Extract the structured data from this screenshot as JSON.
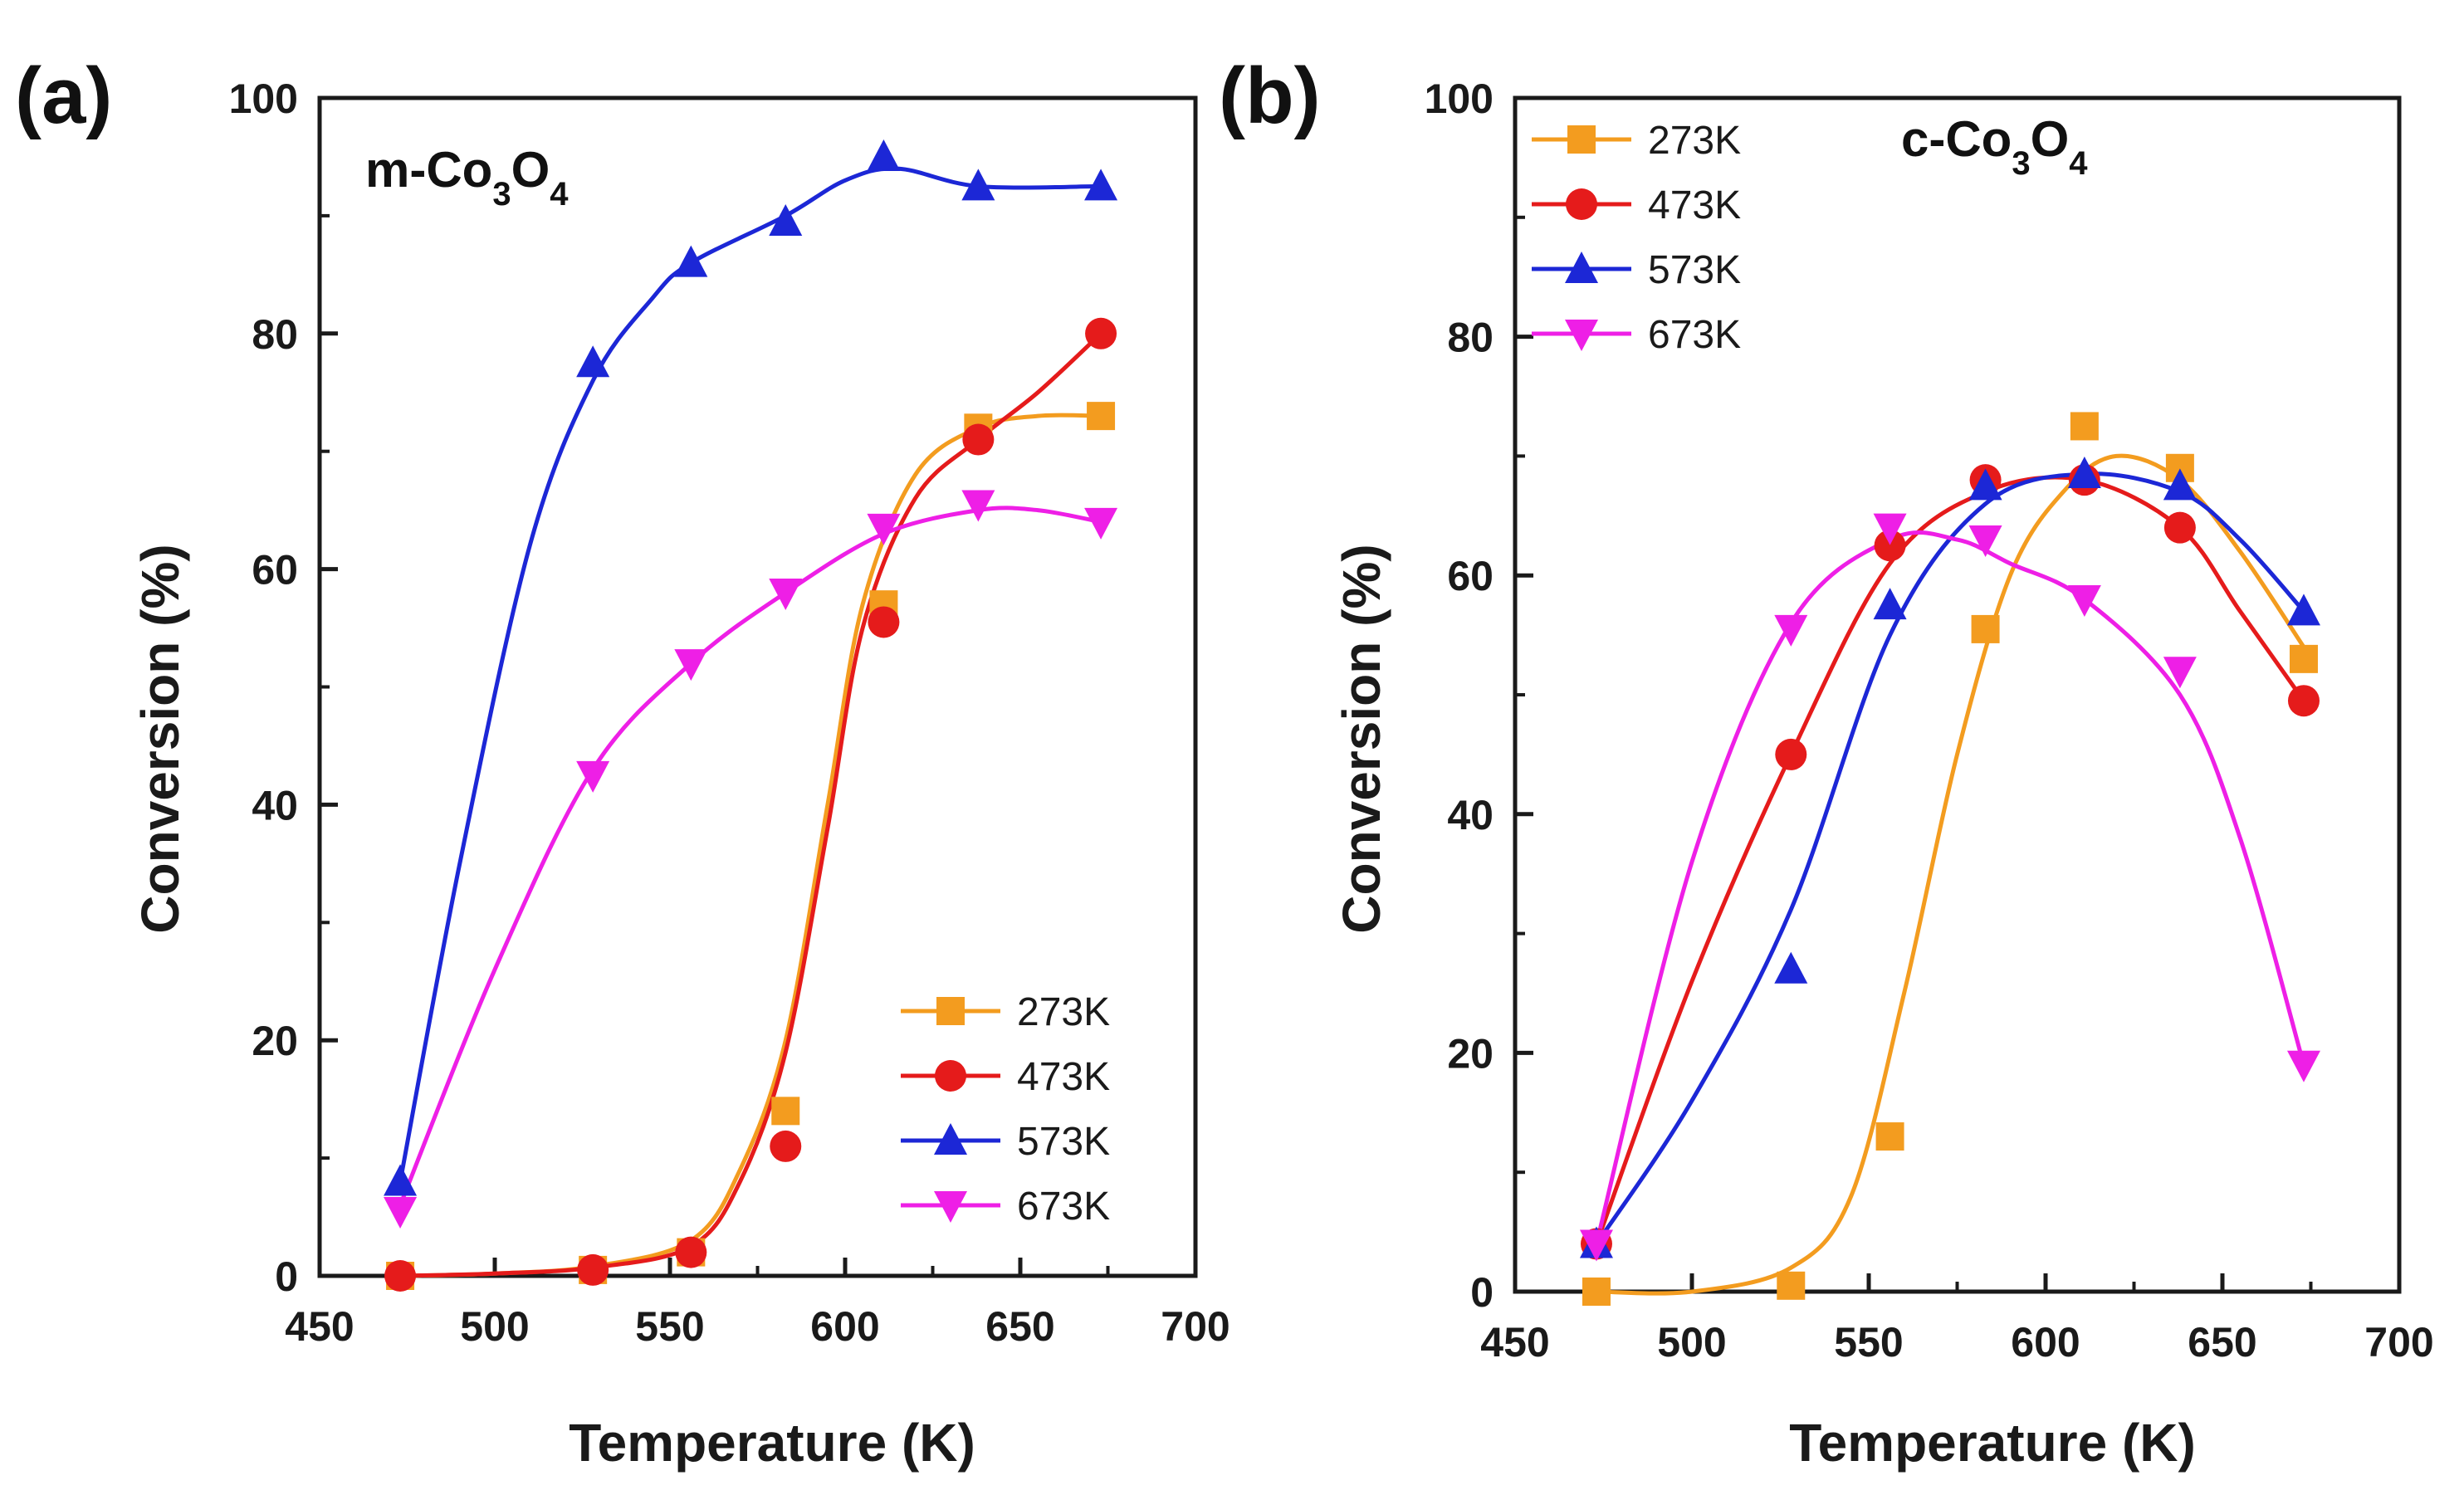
{
  "chart_data": [
    {
      "type": "line",
      "panel_label": "(a)",
      "sample_label": {
        "prefix": "m-Co",
        "sub1": "3",
        "mid": "O",
        "sub2": "4"
      },
      "xlabel": "Temperature (K)",
      "ylabel": "Conversion (%)",
      "xlim": [
        450,
        700
      ],
      "ylim": [
        0,
        100
      ],
      "xticks": [
        450,
        500,
        550,
        600,
        650,
        700
      ],
      "yticks": [
        0,
        20,
        40,
        60,
        80,
        100
      ],
      "legend_position": "bottom-right",
      "series": [
        {
          "name": "273K",
          "color": "#f39c1f",
          "marker": "square",
          "x": [
            473,
            528,
            556,
            583,
            611,
            638,
            673
          ],
          "y": [
            0,
            0.5,
            2,
            14,
            57,
            72,
            73
          ],
          "curve": [
            [
              473,
              0
            ],
            [
              500,
              0.2
            ],
            [
              528,
              0.8
            ],
            [
              556,
              3
            ],
            [
              570,
              9
            ],
            [
              583,
              20
            ],
            [
              595,
              40
            ],
            [
              605,
              57
            ],
            [
              620,
              68
            ],
            [
              638,
              72
            ],
            [
              655,
              73
            ],
            [
              673,
              73
            ]
          ]
        },
        {
          "name": "473K",
          "color": "#e51b1b",
          "marker": "circle",
          "x": [
            473,
            528,
            556,
            583,
            611,
            638,
            673
          ],
          "y": [
            0,
            0.5,
            2,
            11,
            55.5,
            71,
            80
          ],
          "curve": [
            [
              473,
              0
            ],
            [
              500,
              0.2
            ],
            [
              528,
              0.7
            ],
            [
              556,
              2.5
            ],
            [
              570,
              8
            ],
            [
              583,
              19
            ],
            [
              595,
              38
            ],
            [
              605,
              55
            ],
            [
              620,
              66
            ],
            [
              638,
              71
            ],
            [
              655,
              75
            ],
            [
              673,
              80
            ]
          ]
        },
        {
          "name": "573K",
          "color": "#1c27d6",
          "marker": "triangle-up",
          "x": [
            473,
            528,
            556,
            583,
            611,
            638,
            673
          ],
          "y": [
            8,
            77.5,
            86,
            89.5,
            95,
            92.5,
            92.5
          ],
          "curve": [
            [
              473,
              8
            ],
            [
              490,
              35
            ],
            [
              510,
              62
            ],
            [
              528,
              76
            ],
            [
              545,
              83
            ],
            [
              556,
              86
            ],
            [
              583,
              90
            ],
            [
              600,
              93
            ],
            [
              615,
              94
            ],
            [
              638,
              92.5
            ],
            [
              673,
              92.5
            ]
          ]
        },
        {
          "name": "673K",
          "color": "#ee1fe6",
          "marker": "triangle-down",
          "x": [
            473,
            528,
            556,
            583,
            611,
            638,
            673
          ],
          "y": [
            5.5,
            42.5,
            52,
            58,
            63.5,
            65.5,
            64
          ],
          "curve": [
            [
              473,
              6
            ],
            [
              500,
              26
            ],
            [
              528,
              43
            ],
            [
              556,
              52
            ],
            [
              583,
              58
            ],
            [
              611,
              63
            ],
            [
              638,
              65
            ],
            [
              655,
              65
            ],
            [
              673,
              64
            ]
          ]
        }
      ]
    },
    {
      "type": "line",
      "panel_label": "(b)",
      "sample_label": {
        "prefix": "c-Co",
        "sub1": "3",
        "mid": "O",
        "sub2": "4"
      },
      "xlabel": "Temperature (K)",
      "ylabel": "Conversion (%)",
      "xlim": [
        450,
        700
      ],
      "ylim": [
        0,
        100
      ],
      "xticks": [
        450,
        500,
        550,
        600,
        650,
        700
      ],
      "yticks": [
        0,
        20,
        40,
        60,
        80,
        100
      ],
      "legend_position": "top-left",
      "series": [
        {
          "name": "273K",
          "color": "#f39c1f",
          "marker": "square",
          "x": [
            473,
            528,
            556,
            583,
            611,
            638,
            673
          ],
          "y": [
            0,
            0.5,
            13,
            55.5,
            72.5,
            69,
            53
          ],
          "curve": [
            [
              473,
              0
            ],
            [
              500,
              0
            ],
            [
              528,
              2
            ],
            [
              545,
              8
            ],
            [
              560,
              25
            ],
            [
              575,
              45
            ],
            [
              590,
              60
            ],
            [
              605,
              67
            ],
            [
              620,
              70
            ],
            [
              638,
              68
            ],
            [
              655,
              62
            ],
            [
              673,
              54
            ]
          ]
        },
        {
          "name": "473K",
          "color": "#e51b1b",
          "marker": "circle",
          "x": [
            473,
            528,
            556,
            583,
            611,
            638,
            673
          ],
          "y": [
            4,
            45,
            62.5,
            68,
            68,
            64,
            49.5
          ],
          "curve": [
            [
              473,
              4
            ],
            [
              500,
              26
            ],
            [
              528,
              45
            ],
            [
              556,
              61
            ],
            [
              583,
              67
            ],
            [
              611,
              68
            ],
            [
              638,
              64
            ],
            [
              655,
              57
            ],
            [
              673,
              49.5
            ]
          ]
        },
        {
          "name": "573K",
          "color": "#1c27d6",
          "marker": "triangle-up",
          "x": [
            473,
            528,
            556,
            583,
            611,
            638,
            673
          ],
          "y": [
            4,
            27,
            57.5,
            67.5,
            68.5,
            67.5,
            57
          ],
          "curve": [
            [
              473,
              4
            ],
            [
              500,
              16
            ],
            [
              528,
              32
            ],
            [
              556,
              55
            ],
            [
              583,
              66
            ],
            [
              611,
              68.5
            ],
            [
              638,
              67
            ],
            [
              655,
              63
            ],
            [
              673,
              57
            ]
          ]
        },
        {
          "name": "673K",
          "color": "#ee1fe6",
          "marker": "triangle-down",
          "x": [
            473,
            528,
            556,
            583,
            611,
            638,
            673
          ],
          "y": [
            4,
            55.5,
            64,
            63,
            58,
            52,
            19
          ],
          "curve": [
            [
              473,
              4
            ],
            [
              500,
              36
            ],
            [
              528,
              56
            ],
            [
              556,
              63
            ],
            [
              575,
              63
            ],
            [
              590,
              61
            ],
            [
              611,
              58
            ],
            [
              638,
              50
            ],
            [
              655,
              38
            ],
            [
              673,
              19
            ]
          ]
        }
      ]
    }
  ]
}
